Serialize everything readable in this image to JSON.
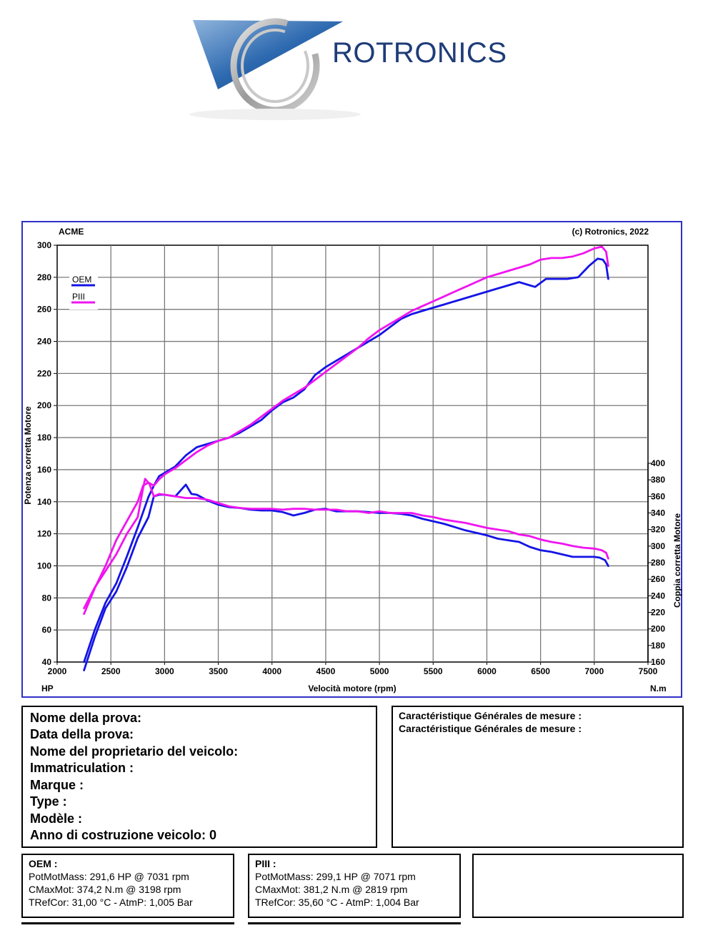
{
  "logo": {
    "brand": "ROTRONICS"
  },
  "chart": {
    "top_left_label": "ACME",
    "copyright": "(c) Rotronics, 2022",
    "left_unit": "HP",
    "right_unit": "N.m",
    "colors": {
      "OEM": "#1414e6",
      "PIII": "#f014f0",
      "grid": "#7a7a7a",
      "frame": "#3030c8"
    }
  },
  "chart_data": {
    "type": "line",
    "xlabel": "Velocità motore (rpm)",
    "ylabel_left": "Potenza corretta Motore",
    "ylabel_right": "Coppia corretta Motore",
    "xlim": [
      2000,
      7500
    ],
    "ylim_left": [
      40,
      300
    ],
    "ylim_right": [
      160,
      400
    ],
    "x_ticks": [
      2000,
      2500,
      3000,
      3500,
      4000,
      4500,
      5000,
      5500,
      6000,
      6500,
      7000,
      7500
    ],
    "y_left_ticks": [
      40,
      60,
      80,
      100,
      120,
      140,
      160,
      180,
      200,
      220,
      240,
      260,
      280,
      300
    ],
    "y_right_ticks": [
      160,
      180,
      200,
      220,
      240,
      260,
      280,
      300,
      320,
      340,
      360,
      380,
      400
    ],
    "legend": [
      "OEM",
      "PIII"
    ],
    "series": [
      {
        "name": "OEM",
        "quantity": "power",
        "axis": "left",
        "points": [
          [
            2250,
            40
          ],
          [
            2350,
            60
          ],
          [
            2450,
            77
          ],
          [
            2550,
            89
          ],
          [
            2650,
            106
          ],
          [
            2750,
            124
          ],
          [
            2850,
            143
          ],
          [
            2900,
            150
          ],
          [
            2950,
            156
          ],
          [
            3000,
            158
          ],
          [
            3100,
            162
          ],
          [
            3200,
            169
          ],
          [
            3300,
            174
          ],
          [
            3400,
            176
          ],
          [
            3500,
            178
          ],
          [
            3600,
            180
          ],
          [
            3700,
            183
          ],
          [
            3800,
            187
          ],
          [
            3900,
            191
          ],
          [
            4000,
            197
          ],
          [
            4100,
            202
          ],
          [
            4200,
            205
          ],
          [
            4300,
            210
          ],
          [
            4400,
            219
          ],
          [
            4500,
            224
          ],
          [
            4600,
            228
          ],
          [
            4700,
            232
          ],
          [
            4800,
            236
          ],
          [
            4900,
            240
          ],
          [
            5000,
            244
          ],
          [
            5100,
            249
          ],
          [
            5200,
            254
          ],
          [
            5300,
            257
          ],
          [
            5400,
            259
          ],
          [
            5500,
            261
          ],
          [
            5600,
            263
          ],
          [
            5700,
            265
          ],
          [
            5800,
            267
          ],
          [
            5900,
            269
          ],
          [
            6000,
            271
          ],
          [
            6100,
            273
          ],
          [
            6200,
            275
          ],
          [
            6300,
            277
          ],
          [
            6400,
            275
          ],
          [
            6450,
            274
          ],
          [
            6550,
            279
          ],
          [
            6650,
            279
          ],
          [
            6750,
            279
          ],
          [
            6850,
            280
          ],
          [
            6950,
            287
          ],
          [
            7031,
            291.6
          ],
          [
            7080,
            291
          ],
          [
            7110,
            288
          ],
          [
            7130,
            279
          ]
        ]
      },
      {
        "name": "PIII",
        "quantity": "power",
        "axis": "left",
        "points": [
          [
            2250,
            70
          ],
          [
            2350,
            86
          ],
          [
            2450,
            100
          ],
          [
            2550,
            116
          ],
          [
            2650,
            128
          ],
          [
            2750,
            140
          ],
          [
            2800,
            150
          ],
          [
            2850,
            152
          ],
          [
            2900,
            150
          ],
          [
            2950,
            154
          ],
          [
            3000,
            157
          ],
          [
            3100,
            161
          ],
          [
            3200,
            166
          ],
          [
            3300,
            171
          ],
          [
            3400,
            175
          ],
          [
            3500,
            178
          ],
          [
            3600,
            180
          ],
          [
            3700,
            184
          ],
          [
            3800,
            188
          ],
          [
            3900,
            193
          ],
          [
            4000,
            198
          ],
          [
            4100,
            203
          ],
          [
            4200,
            207
          ],
          [
            4300,
            211
          ],
          [
            4400,
            216
          ],
          [
            4500,
            221
          ],
          [
            4600,
            226
          ],
          [
            4700,
            231
          ],
          [
            4800,
            236
          ],
          [
            4900,
            242
          ],
          [
            5000,
            247
          ],
          [
            5100,
            251
          ],
          [
            5200,
            255
          ],
          [
            5300,
            259
          ],
          [
            5400,
            262
          ],
          [
            5500,
            265
          ],
          [
            5600,
            268
          ],
          [
            5700,
            271
          ],
          [
            5800,
            274
          ],
          [
            5900,
            277
          ],
          [
            6000,
            280
          ],
          [
            6100,
            282
          ],
          [
            6200,
            284
          ],
          [
            6300,
            286
          ],
          [
            6400,
            288
          ],
          [
            6500,
            291
          ],
          [
            6600,
            292
          ],
          [
            6700,
            292
          ],
          [
            6800,
            293
          ],
          [
            6900,
            295
          ],
          [
            7000,
            298
          ],
          [
            7071,
            299.1
          ],
          [
            7110,
            296
          ],
          [
            7130,
            287
          ]
        ]
      },
      {
        "name": "OEM",
        "quantity": "torque",
        "axis": "right",
        "points": [
          [
            2250,
            150
          ],
          [
            2350,
            190
          ],
          [
            2450,
            225
          ],
          [
            2550,
            245
          ],
          [
            2650,
            275
          ],
          [
            2750,
            310
          ],
          [
            2850,
            335
          ],
          [
            2900,
            360
          ],
          [
            2950,
            362
          ],
          [
            3000,
            362
          ],
          [
            3100,
            360
          ],
          [
            3198,
            374.2
          ],
          [
            3250,
            363
          ],
          [
            3300,
            362
          ],
          [
            3400,
            355
          ],
          [
            3500,
            350
          ],
          [
            3600,
            347
          ],
          [
            3700,
            346
          ],
          [
            3800,
            344
          ],
          [
            3900,
            343
          ],
          [
            4000,
            343
          ],
          [
            4100,
            341
          ],
          [
            4200,
            337
          ],
          [
            4300,
            340
          ],
          [
            4400,
            344
          ],
          [
            4500,
            345
          ],
          [
            4600,
            342
          ],
          [
            4700,
            342
          ],
          [
            4800,
            342
          ],
          [
            4900,
            341
          ],
          [
            5000,
            340
          ],
          [
            5100,
            340
          ],
          [
            5200,
            339
          ],
          [
            5300,
            337
          ],
          [
            5400,
            333
          ],
          [
            5500,
            330
          ],
          [
            5600,
            327
          ],
          [
            5700,
            323
          ],
          [
            5800,
            319
          ],
          [
            5900,
            316
          ],
          [
            6000,
            313
          ],
          [
            6100,
            309
          ],
          [
            6200,
            307
          ],
          [
            6300,
            305
          ],
          [
            6400,
            299
          ],
          [
            6500,
            295
          ],
          [
            6600,
            293
          ],
          [
            6700,
            290
          ],
          [
            6800,
            287
          ],
          [
            6900,
            287
          ],
          [
            7000,
            287
          ],
          [
            7050,
            286
          ],
          [
            7100,
            283
          ],
          [
            7130,
            276
          ]
        ]
      },
      {
        "name": "PIII",
        "quantity": "torque",
        "axis": "right",
        "points": [
          [
            2250,
            225
          ],
          [
            2350,
            250
          ],
          [
            2450,
            270
          ],
          [
            2550,
            290
          ],
          [
            2650,
            315
          ],
          [
            2750,
            335
          ],
          [
            2800,
            370
          ],
          [
            2819,
            381.2
          ],
          [
            2860,
            375
          ],
          [
            2900,
            360
          ],
          [
            2950,
            363
          ],
          [
            3000,
            362
          ],
          [
            3100,
            360
          ],
          [
            3200,
            358
          ],
          [
            3300,
            358
          ],
          [
            3400,
            356
          ],
          [
            3500,
            352
          ],
          [
            3600,
            348
          ],
          [
            3700,
            346
          ],
          [
            3800,
            345
          ],
          [
            3900,
            345
          ],
          [
            4000,
            345
          ],
          [
            4100,
            344
          ],
          [
            4200,
            345
          ],
          [
            4300,
            345
          ],
          [
            4400,
            344
          ],
          [
            4500,
            344
          ],
          [
            4600,
            344
          ],
          [
            4700,
            342
          ],
          [
            4800,
            342
          ],
          [
            4900,
            340
          ],
          [
            5000,
            342
          ],
          [
            5100,
            340
          ],
          [
            5200,
            340
          ],
          [
            5300,
            340
          ],
          [
            5400,
            337
          ],
          [
            5500,
            335
          ],
          [
            5600,
            332
          ],
          [
            5700,
            330
          ],
          [
            5800,
            328
          ],
          [
            5900,
            325
          ],
          [
            6000,
            322
          ],
          [
            6100,
            320
          ],
          [
            6200,
            318
          ],
          [
            6300,
            314
          ],
          [
            6400,
            312
          ],
          [
            6500,
            308
          ],
          [
            6600,
            305
          ],
          [
            6700,
            303
          ],
          [
            6800,
            300
          ],
          [
            6900,
            298
          ],
          [
            7000,
            297
          ],
          [
            7070,
            295
          ],
          [
            7110,
            292
          ],
          [
            7130,
            285
          ]
        ]
      }
    ]
  },
  "info": {
    "lines": [
      "Nome della prova:",
      "Data della prova:",
      "Nome del proprietario del veicolo:",
      "Immatriculation  :",
      "Marque  :",
      "Type  :",
      "Modèle  :",
      "Anno di costruzione veicolo: 0"
    ]
  },
  "caracteristiques": {
    "lines": [
      "Caractéristique Générales de mesure :",
      "Caractéristique Générales de mesure :"
    ]
  },
  "results": [
    {
      "title": "OEM :",
      "lines": [
        "PotMotMass: 291,6 HP @ 7031 rpm",
        "CMaxMot: 374,2 N.m @ 3198 rpm",
        "TRefCor: 31,00 °C - AtmP: 1,005 Bar"
      ]
    },
    {
      "title": "PIII :",
      "lines": [
        "PotMotMass: 299,1 HP @ 7071 rpm",
        "CMaxMot: 381,2 N.m @ 2819 rpm",
        "TRefCor: 35,60 °C - AtmP: 1,004 Bar"
      ]
    }
  ]
}
